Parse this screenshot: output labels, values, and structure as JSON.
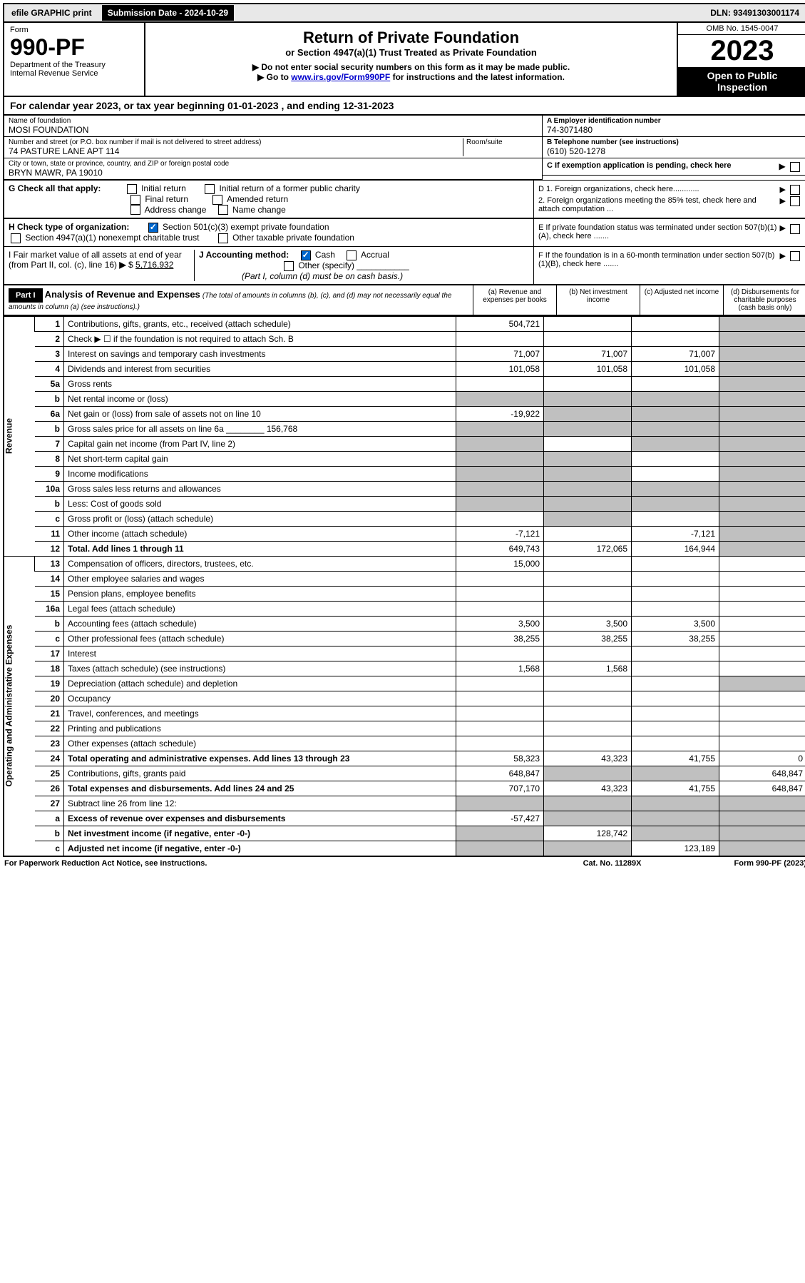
{
  "top": {
    "efile": "efile GRAPHIC print",
    "submission_label": "Submission Date - 2024-10-29",
    "dln": "DLN: 93491303001174"
  },
  "header": {
    "form_word": "Form",
    "form_no": "990-PF",
    "dept": "Department of the Treasury",
    "irs": "Internal Revenue Service",
    "title": "Return of Private Foundation",
    "subtitle": "or Section 4947(a)(1) Trust Treated as Private Foundation",
    "instr1": "▶ Do not enter social security numbers on this form as it may be made public.",
    "instr2_pre": "▶ Go to ",
    "instr2_link": "www.irs.gov/Form990PF",
    "instr2_post": " for instructions and the latest information.",
    "omb": "OMB No. 1545-0047",
    "year": "2023",
    "open": "Open to Public Inspection"
  },
  "calyear": "For calendar year 2023, or tax year beginning 01-01-2023                          , and ending 12-31-2023",
  "id": {
    "name_label": "Name of foundation",
    "name": "MOSI FOUNDATION",
    "addr_label": "Number and street (or P.O. box number if mail is not delivered to street address)",
    "room_label": "Room/suite",
    "addr": "74 PASTURE LANE APT 114",
    "city_label": "City or town, state or province, country, and ZIP or foreign postal code",
    "city": "BRYN MAWR, PA  19010",
    "a_label": "A Employer identification number",
    "a_val": "74-3071480",
    "b_label": "B Telephone number (see instructions)",
    "b_val": "(610) 520-1278",
    "c_label": "C If exemption application is pending, check here"
  },
  "g": {
    "label": "G Check all that apply:",
    "opts": [
      "Initial return",
      "Initial return of a former public charity",
      "Final return",
      "Amended return",
      "Address change",
      "Name change"
    ]
  },
  "d": {
    "d1": "D 1. Foreign organizations, check here............",
    "d2": "2. Foreign organizations meeting the 85% test, check here and attach computation ..."
  },
  "h": {
    "label": "H Check type of organization:",
    "opt1": "Section 501(c)(3) exempt private foundation",
    "opt2": "Section 4947(a)(1) nonexempt charitable trust",
    "opt3": "Other taxable private foundation"
  },
  "e": "E  If private foundation status was terminated under section 507(b)(1)(A), check here .......",
  "i": {
    "label_pre": "I Fair market value of all assets at end of year (from Part II, col. (c), line 16) ",
    "arrow": "▶",
    "dollar": "$",
    "val": "5,716,932"
  },
  "j": {
    "label": "J Accounting method:",
    "cash": "Cash",
    "accrual": "Accrual",
    "other": "Other (specify)",
    "note": "(Part I, column (d) must be on cash basis.)"
  },
  "f": "F  If the foundation is in a 60-month termination under section 507(b)(1)(B), check here .......",
  "part1": {
    "tag": "Part I",
    "title": "Analysis of Revenue and Expenses",
    "note": " (The total of amounts in columns (b), (c), and (d) may not necessarily equal the amounts in column (a) (see instructions).)",
    "cols": {
      "a": "(a) Revenue and expenses per books",
      "b": "(b) Net investment income",
      "c": "(c) Adjusted net income",
      "d": "(d) Disbursements for charitable purposes (cash basis only)"
    }
  },
  "sections": {
    "rev": "Revenue",
    "exp": "Operating and Administrative Expenses"
  },
  "lines": [
    {
      "n": "1",
      "d": "Contributions, gifts, grants, etc., received (attach schedule)",
      "a": "504,721",
      "b": "",
      "c": "",
      "dg": true
    },
    {
      "n": "2",
      "d": "Check ▶ ☐ if the foundation is not required to attach Sch. B",
      "a": "",
      "b": "",
      "c": "",
      "dg": true,
      "nob": true
    },
    {
      "n": "3",
      "d": "Interest on savings and temporary cash investments",
      "a": "71,007",
      "b": "71,007",
      "c": "71,007",
      "dg": true
    },
    {
      "n": "4",
      "d": "Dividends and interest from securities",
      "a": "101,058",
      "b": "101,058",
      "c": "101,058",
      "dg": true
    },
    {
      "n": "5a",
      "d": "Gross rents",
      "a": "",
      "b": "",
      "c": "",
      "dg": true
    },
    {
      "n": "b",
      "d": "Net rental income or (loss)",
      "a": "",
      "b": "",
      "c": "",
      "dg": true,
      "allgrey": true
    },
    {
      "n": "6a",
      "d": "Net gain or (loss) from sale of assets not on line 10",
      "a": "-19,922",
      "b": "",
      "c": "",
      "dg": true,
      "bgrey": true,
      "cgrey": true
    },
    {
      "n": "b",
      "d": "Gross sales price for all assets on line 6a ________ 156,768",
      "a": "",
      "b": "",
      "c": "",
      "dg": true,
      "allgrey": true
    },
    {
      "n": "7",
      "d": "Capital gain net income (from Part IV, line 2)",
      "a": "",
      "b": "",
      "c": "",
      "dg": true,
      "agrey": true,
      "cgrey": true
    },
    {
      "n": "8",
      "d": "Net short-term capital gain",
      "a": "",
      "b": "",
      "c": "",
      "dg": true,
      "agrey": true,
      "bgrey": true
    },
    {
      "n": "9",
      "d": "Income modifications",
      "a": "",
      "b": "",
      "c": "",
      "dg": true,
      "agrey": true,
      "bgrey": true
    },
    {
      "n": "10a",
      "d": "Gross sales less returns and allowances",
      "a": "",
      "b": "",
      "c": "",
      "dg": true,
      "allgrey": true
    },
    {
      "n": "b",
      "d": "Less: Cost of goods sold",
      "a": "",
      "b": "",
      "c": "",
      "dg": true,
      "allgrey": true
    },
    {
      "n": "c",
      "d": "Gross profit or (loss) (attach schedule)",
      "a": "",
      "b": "",
      "c": "",
      "dg": true,
      "bgrey": true
    },
    {
      "n": "11",
      "d": "Other income (attach schedule)",
      "a": "-7,121",
      "b": "",
      "c": "-7,121",
      "dg": true
    },
    {
      "n": "12",
      "d": "Total. Add lines 1 through 11",
      "a": "649,743",
      "b": "172,065",
      "c": "164,944",
      "dg": true,
      "bold": true
    }
  ],
  "lines2": [
    {
      "n": "13",
      "d": "Compensation of officers, directors, trustees, etc.",
      "a": "15,000",
      "b": "",
      "c": "",
      "dv": ""
    },
    {
      "n": "14",
      "d": "Other employee salaries and wages",
      "a": "",
      "b": "",
      "c": "",
      "dv": ""
    },
    {
      "n": "15",
      "d": "Pension plans, employee benefits",
      "a": "",
      "b": "",
      "c": "",
      "dv": ""
    },
    {
      "n": "16a",
      "d": "Legal fees (attach schedule)",
      "a": "",
      "b": "",
      "c": "",
      "dv": ""
    },
    {
      "n": "b",
      "d": "Accounting fees (attach schedule)",
      "a": "3,500",
      "b": "3,500",
      "c": "3,500",
      "dv": ""
    },
    {
      "n": "c",
      "d": "Other professional fees (attach schedule)",
      "a": "38,255",
      "b": "38,255",
      "c": "38,255",
      "dv": ""
    },
    {
      "n": "17",
      "d": "Interest",
      "a": "",
      "b": "",
      "c": "",
      "dv": ""
    },
    {
      "n": "18",
      "d": "Taxes (attach schedule) (see instructions)",
      "a": "1,568",
      "b": "1,568",
      "c": "",
      "dv": ""
    },
    {
      "n": "19",
      "d": "Depreciation (attach schedule) and depletion",
      "a": "",
      "b": "",
      "c": "",
      "dg": true
    },
    {
      "n": "20",
      "d": "Occupancy",
      "a": "",
      "b": "",
      "c": "",
      "dv": ""
    },
    {
      "n": "21",
      "d": "Travel, conferences, and meetings",
      "a": "",
      "b": "",
      "c": "",
      "dv": ""
    },
    {
      "n": "22",
      "d": "Printing and publications",
      "a": "",
      "b": "",
      "c": "",
      "dv": ""
    },
    {
      "n": "23",
      "d": "Other expenses (attach schedule)",
      "a": "",
      "b": "",
      "c": "",
      "dv": ""
    },
    {
      "n": "24",
      "d": "Total operating and administrative expenses. Add lines 13 through 23",
      "a": "58,323",
      "b": "43,323",
      "c": "41,755",
      "dv": "0",
      "bold": true
    },
    {
      "n": "25",
      "d": "Contributions, gifts, grants paid",
      "a": "648,847",
      "b": "",
      "c": "",
      "dv": "648,847",
      "bgrey": true,
      "cgrey": true
    },
    {
      "n": "26",
      "d": "Total expenses and disbursements. Add lines 24 and 25",
      "a": "707,170",
      "b": "43,323",
      "c": "41,755",
      "dv": "648,847",
      "bold": true
    }
  ],
  "lines3": [
    {
      "n": "27",
      "d": "Subtract line 26 from line 12:",
      "a": "",
      "b": "",
      "c": "",
      "dv": "",
      "allgrey": true
    },
    {
      "n": "a",
      "d": "Excess of revenue over expenses and disbursements",
      "a": "-57,427",
      "b": "",
      "c": "",
      "dv": "",
      "bold": true,
      "bgrey": true,
      "cgrey": true,
      "dg": true
    },
    {
      "n": "b",
      "d": "Net investment income (if negative, enter -0-)",
      "a": "",
      "b": "128,742",
      "c": "",
      "dv": "",
      "bold": true,
      "agrey": true,
      "cgrey": true,
      "dg": true
    },
    {
      "n": "c",
      "d": "Adjusted net income (if negative, enter -0-)",
      "a": "",
      "b": "",
      "c": "123,189",
      "dv": "",
      "bold": true,
      "agrey": true,
      "bgrey": true,
      "dg": true
    }
  ],
  "footer": {
    "f1": "For Paperwork Reduction Act Notice, see instructions.",
    "f2": "Cat. No. 11289X",
    "f3": "Form 990-PF (2023)"
  }
}
